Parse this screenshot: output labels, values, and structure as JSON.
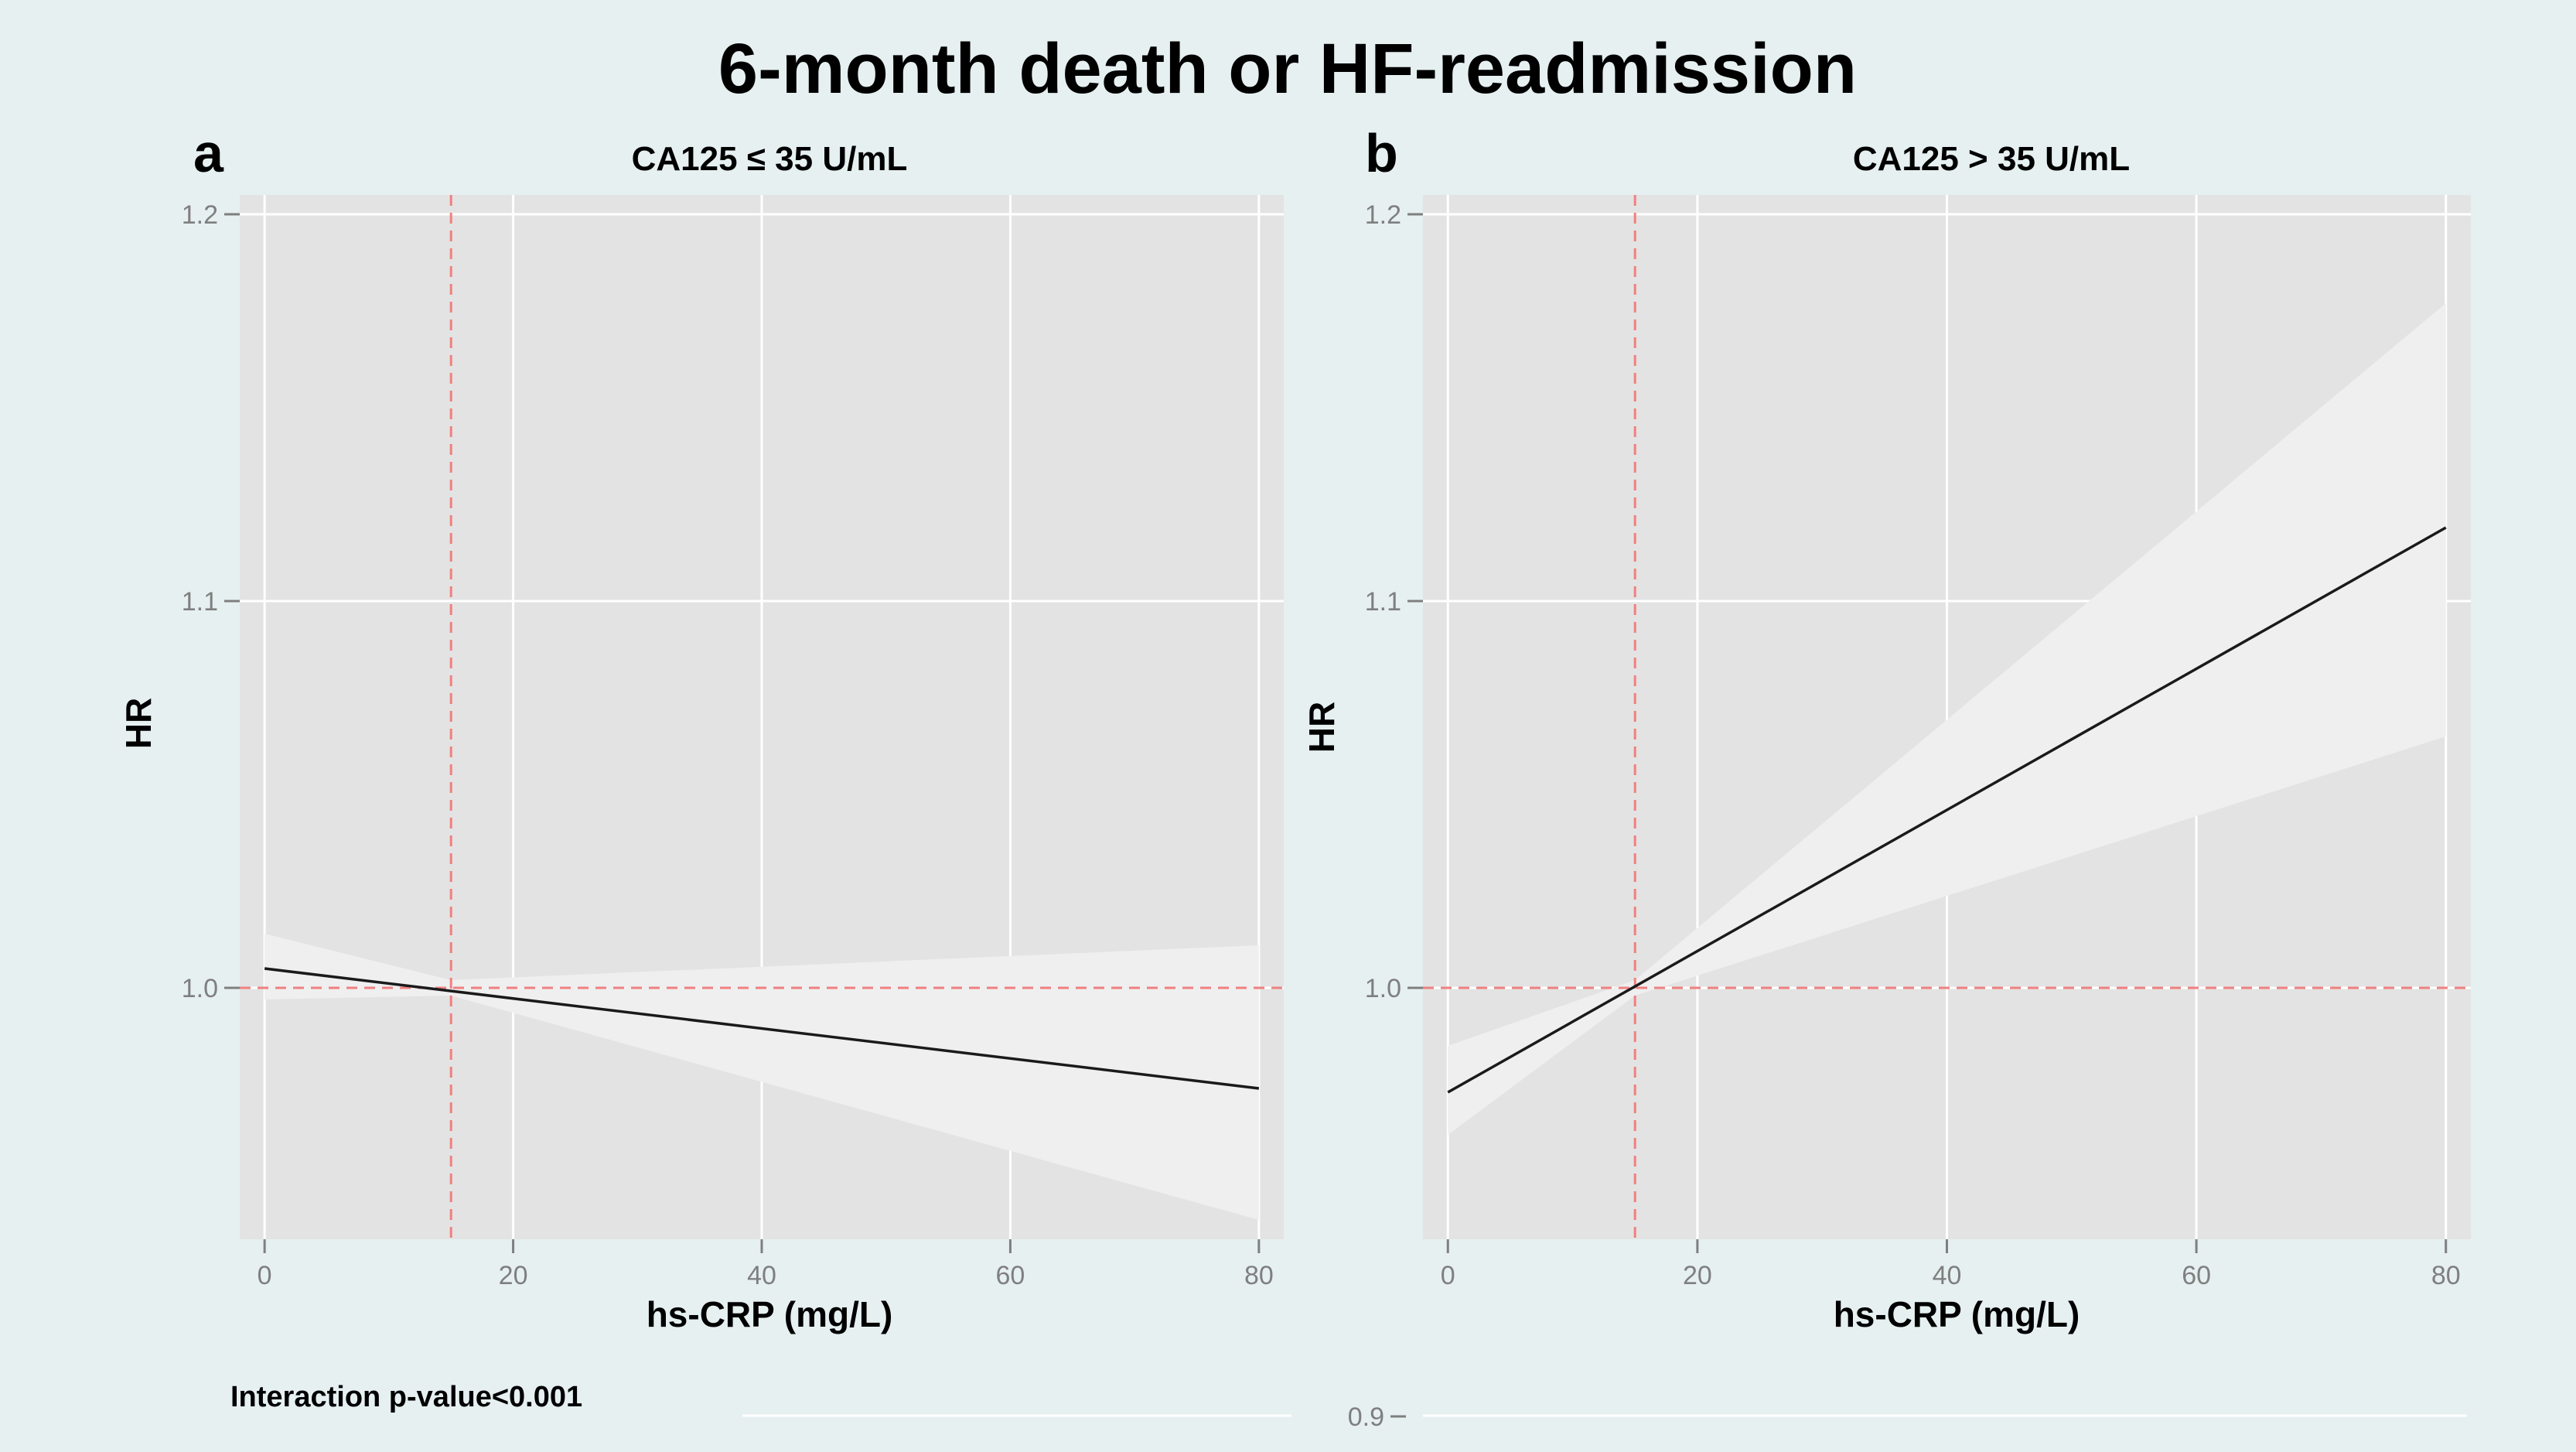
{
  "figure": {
    "title": "6-month death or HF-readmission",
    "note": "Interaction p-value<0.001",
    "extra_tick_label": "0.9"
  },
  "colors": {
    "background": "#e6f0f1",
    "panel": "#e3e3e3",
    "band": "#efefef",
    "gridline": "#ffffff",
    "fit_line": "#1a1a1a",
    "reference": "#f08080",
    "tick": "#7f7f7f"
  },
  "chart_data": [
    {
      "type": "line",
      "panel_letter": "a",
      "title": "CA125 ≤ 35 U/mL",
      "xlabel": "hs-CRP (mg/L)",
      "ylabel": "HR",
      "xlim": [
        -2,
        82
      ],
      "ylim": [
        0.935,
        1.205
      ],
      "xticks": [
        0,
        20,
        40,
        60,
        80
      ],
      "xtick_labels": [
        "0",
        "20",
        "40",
        "60",
        "80"
      ],
      "yticks": [
        1.0,
        1.1,
        1.2
      ],
      "ytick_labels": [
        "1.0",
        "1.1",
        "1.2"
      ],
      "reference_lines": {
        "x": 15,
        "y": 1.0
      },
      "series": [
        {
          "name": "HR",
          "x": [
            0,
            80
          ],
          "y": [
            1.005,
            0.974
          ]
        }
      ],
      "confidence_band": {
        "x": [
          0,
          15,
          80
        ],
        "lower": [
          0.997,
          0.998,
          0.94
        ],
        "upper": [
          1.014,
          1.002,
          1.011
        ]
      }
    },
    {
      "type": "line",
      "panel_letter": "b",
      "title": "CA125 > 35 U/mL",
      "xlabel": "hs-CRP (mg/L)",
      "ylabel": "HR",
      "xlim": [
        -2,
        82
      ],
      "ylim": [
        0.935,
        1.205
      ],
      "xticks": [
        0,
        20,
        40,
        60,
        80
      ],
      "xtick_labels": [
        "0",
        "20",
        "40",
        "60",
        "80"
      ],
      "yticks": [
        1.0,
        1.1,
        1.2
      ],
      "ytick_labels": [
        "1.0",
        "1.1",
        "1.2"
      ],
      "reference_lines": {
        "x": 15,
        "y": 1.0
      },
      "series": [
        {
          "name": "HR",
          "x": [
            0,
            80
          ],
          "y": [
            0.973,
            1.119
          ]
        }
      ],
      "confidence_band": {
        "x": [
          0,
          15,
          80
        ],
        "lower": [
          0.962,
          0.998,
          1.065
        ],
        "upper": [
          0.985,
          1.002,
          1.177
        ]
      }
    }
  ]
}
